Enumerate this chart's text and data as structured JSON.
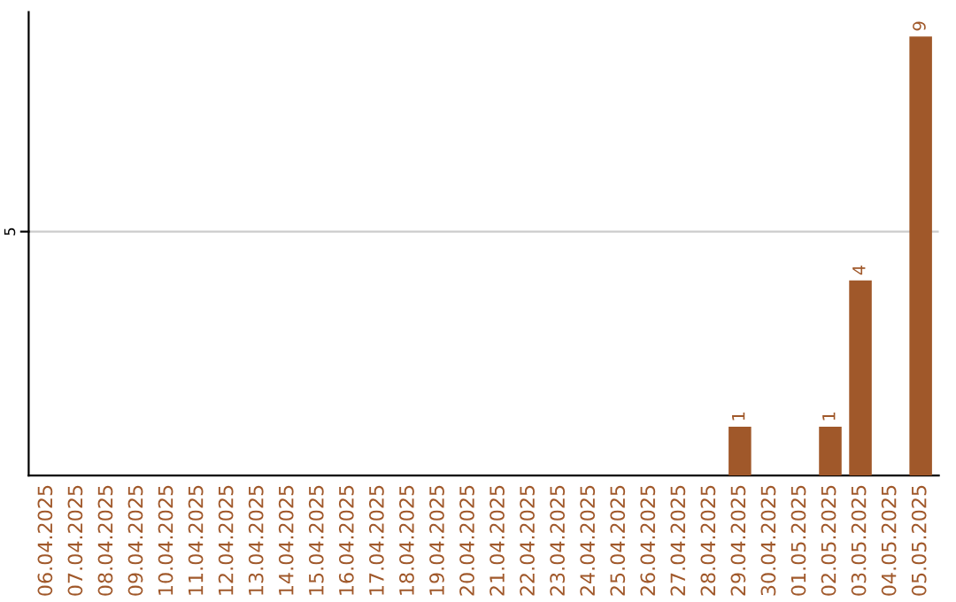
{
  "chart_data": {
    "type": "bar",
    "ylim": [
      0,
      9.5
    ],
    "categories": [
      "06.04.2025",
      "07.04.2025",
      "08.04.2025",
      "09.04.2025",
      "10.04.2025",
      "11.04.2025",
      "12.04.2025",
      "13.04.2025",
      "14.04.2025",
      "15.04.2025",
      "16.04.2025",
      "17.04.2025",
      "18.04.2025",
      "19.04.2025",
      "20.04.2025",
      "21.04.2025",
      "22.04.2025",
      "23.04.2025",
      "24.04.2025",
      "25.04.2025",
      "26.04.2025",
      "27.04.2025",
      "28.04.2025",
      "29.04.2025",
      "30.04.2025",
      "01.05.2025",
      "02.05.2025",
      "03.05.2025",
      "04.05.2025",
      "05.05.2025"
    ],
    "series": [
      {
        "color": "#a0582a",
        "values": [
          null,
          null,
          null,
          null,
          null,
          null,
          null,
          null,
          null,
          null,
          null,
          null,
          null,
          null,
          null,
          null,
          null,
          null,
          null,
          null,
          null,
          null,
          null,
          1,
          null,
          null,
          1,
          4,
          null,
          9
        ],
        "value_labels": [
          null,
          null,
          null,
          null,
          null,
          null,
          null,
          null,
          null,
          null,
          null,
          null,
          null,
          null,
          null,
          null,
          null,
          null,
          null,
          null,
          null,
          null,
          null,
          "1",
          null,
          null,
          "1",
          "4",
          null,
          "9"
        ]
      }
    ],
    "ref_lines": [
      {
        "axis": "y",
        "value": 5,
        "label": "5",
        "color": "#cccccc"
      }
    ],
    "legend": false
  }
}
